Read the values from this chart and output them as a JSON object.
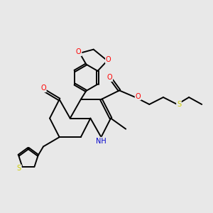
{
  "background_color": "#e8e8e8",
  "bond_color": "#000000",
  "atom_colors": {
    "O": "#ff0000",
    "N": "#0000cc",
    "S": "#cccc00",
    "C": "#000000",
    "H": "#000000"
  },
  "line_width": 1.4,
  "figsize": [
    3.0,
    3.0
  ],
  "dpi": 100,
  "xlim": [
    0,
    10
  ],
  "ylim": [
    1.5,
    10
  ]
}
